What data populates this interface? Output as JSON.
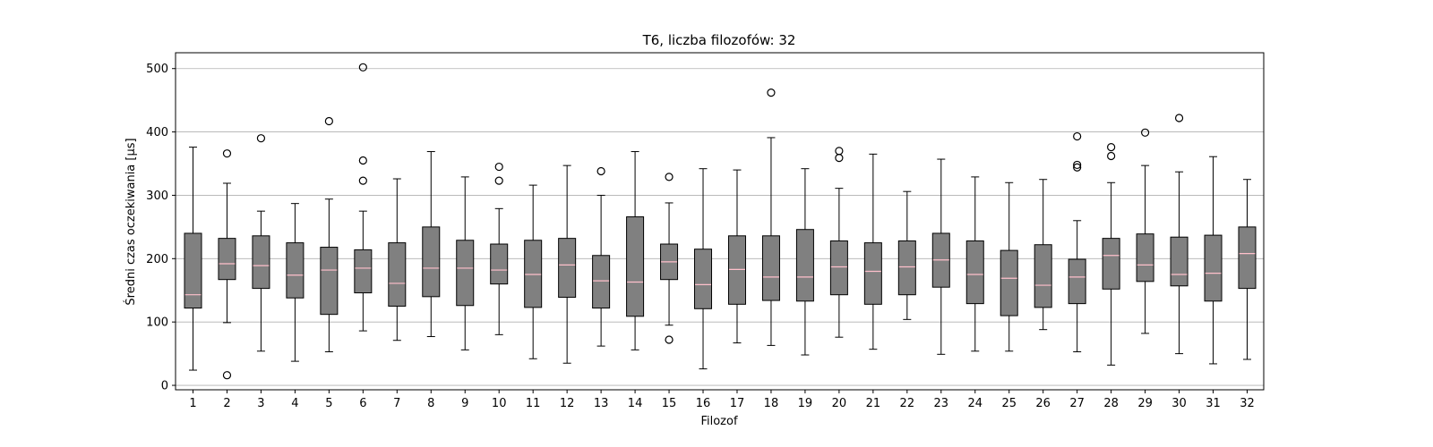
{
  "chart_data": {
    "type": "box",
    "title": "T6, liczba filozofów: 32",
    "xlabel": "Filozof",
    "ylabel": "Średni czas oczekiwania [µs]",
    "ylim": [
      -7,
      525
    ],
    "yticks": [
      0,
      100,
      200,
      300,
      400,
      500
    ],
    "grid": "y-major",
    "colors": {
      "box": "#808080",
      "median": "#ffc0cb",
      "edge": "#000000",
      "grid": "#b0b0b0"
    },
    "categories": [
      "1",
      "2",
      "3",
      "4",
      "5",
      "6",
      "7",
      "8",
      "9",
      "10",
      "11",
      "12",
      "13",
      "14",
      "15",
      "16",
      "17",
      "18",
      "19",
      "20",
      "21",
      "22",
      "23",
      "24",
      "25",
      "26",
      "27",
      "28",
      "29",
      "30",
      "31",
      "32"
    ],
    "boxes": [
      {
        "whislo": 24,
        "q1": 122,
        "med": 143,
        "q3": 240,
        "whishi": 376,
        "fliers": []
      },
      {
        "whislo": 99,
        "q1": 167,
        "med": 192,
        "q3": 232,
        "whishi": 319,
        "fliers": [
          16,
          366
        ]
      },
      {
        "whislo": 54,
        "q1": 153,
        "med": 189,
        "q3": 236,
        "whishi": 275,
        "fliers": [
          390
        ]
      },
      {
        "whislo": 38,
        "q1": 138,
        "med": 174,
        "q3": 225,
        "whishi": 287,
        "fliers": []
      },
      {
        "whislo": 53,
        "q1": 112,
        "med": 182,
        "q3": 218,
        "whishi": 294,
        "fliers": [
          417
        ]
      },
      {
        "whislo": 86,
        "q1": 146,
        "med": 185,
        "q3": 214,
        "whishi": 275,
        "fliers": [
          323,
          355,
          502
        ]
      },
      {
        "whislo": 71,
        "q1": 125,
        "med": 161,
        "q3": 225,
        "whishi": 326,
        "fliers": []
      },
      {
        "whislo": 77,
        "q1": 140,
        "med": 185,
        "q3": 250,
        "whishi": 369,
        "fliers": []
      },
      {
        "whislo": 56,
        "q1": 126,
        "med": 185,
        "q3": 229,
        "whishi": 329,
        "fliers": []
      },
      {
        "whislo": 80,
        "q1": 160,
        "med": 182,
        "q3": 223,
        "whishi": 279,
        "fliers": [
          323,
          345
        ]
      },
      {
        "whislo": 42,
        "q1": 123,
        "med": 175,
        "q3": 229,
        "whishi": 316,
        "fliers": []
      },
      {
        "whislo": 35,
        "q1": 139,
        "med": 190,
        "q3": 232,
        "whishi": 347,
        "fliers": []
      },
      {
        "whislo": 62,
        "q1": 122,
        "med": 165,
        "q3": 205,
        "whishi": 300,
        "fliers": [
          338
        ]
      },
      {
        "whislo": 56,
        "q1": 109,
        "med": 163,
        "q3": 266,
        "whishi": 369,
        "fliers": []
      },
      {
        "whislo": 95,
        "q1": 167,
        "med": 195,
        "q3": 223,
        "whishi": 288,
        "fliers": [
          72,
          329
        ]
      },
      {
        "whislo": 26,
        "q1": 121,
        "med": 159,
        "q3": 215,
        "whishi": 342,
        "fliers": []
      },
      {
        "whislo": 67,
        "q1": 128,
        "med": 183,
        "q3": 236,
        "whishi": 340,
        "fliers": []
      },
      {
        "whislo": 63,
        "q1": 134,
        "med": 171,
        "q3": 236,
        "whishi": 391,
        "fliers": [
          462
        ]
      },
      {
        "whislo": 48,
        "q1": 133,
        "med": 171,
        "q3": 246,
        "whishi": 342,
        "fliers": []
      },
      {
        "whislo": 76,
        "q1": 143,
        "med": 187,
        "q3": 228,
        "whishi": 311,
        "fliers": [
          359,
          370
        ]
      },
      {
        "whislo": 57,
        "q1": 128,
        "med": 180,
        "q3": 225,
        "whishi": 365,
        "fliers": []
      },
      {
        "whislo": 104,
        "q1": 143,
        "med": 187,
        "q3": 228,
        "whishi": 306,
        "fliers": []
      },
      {
        "whislo": 49,
        "q1": 155,
        "med": 198,
        "q3": 240,
        "whishi": 357,
        "fliers": []
      },
      {
        "whislo": 54,
        "q1": 129,
        "med": 175,
        "q3": 228,
        "whishi": 329,
        "fliers": []
      },
      {
        "whislo": 54,
        "q1": 110,
        "med": 169,
        "q3": 213,
        "whishi": 320,
        "fliers": []
      },
      {
        "whislo": 88,
        "q1": 123,
        "med": 158,
        "q3": 222,
        "whishi": 325,
        "fliers": []
      },
      {
        "whislo": 53,
        "q1": 129,
        "med": 171,
        "q3": 199,
        "whishi": 260,
        "fliers": [
          344,
          348,
          393
        ]
      },
      {
        "whislo": 32,
        "q1": 152,
        "med": 205,
        "q3": 232,
        "whishi": 320,
        "fliers": [
          362,
          376
        ]
      },
      {
        "whislo": 82,
        "q1": 164,
        "med": 190,
        "q3": 239,
        "whishi": 347,
        "fliers": [
          399
        ]
      },
      {
        "whislo": 50,
        "q1": 157,
        "med": 175,
        "q3": 234,
        "whishi": 337,
        "fliers": [
          422
        ]
      },
      {
        "whislo": 34,
        "q1": 133,
        "med": 177,
        "q3": 237,
        "whishi": 361,
        "fliers": []
      },
      {
        "whislo": 41,
        "q1": 153,
        "med": 208,
        "q3": 250,
        "whishi": 325,
        "fliers": []
      }
    ]
  }
}
